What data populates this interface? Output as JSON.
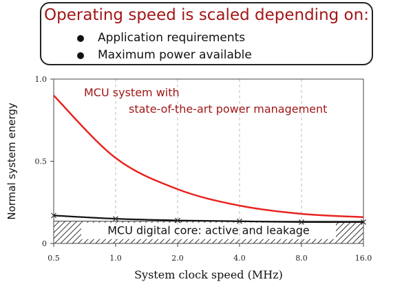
{
  "callout": {
    "title": "Operating speed is scaled depending on:",
    "bullets": [
      "Application requirements",
      "Maximum power available"
    ]
  },
  "chart_data": {
    "type": "line",
    "title": "",
    "xlabel": "System clock speed (MHz)",
    "ylabel": "Normal system energy",
    "x_scale": "log2",
    "x": [
      0.5,
      1.0,
      2.0,
      4.0,
      8.0,
      16.0
    ],
    "x_tick_labels": [
      "0.5",
      "1.0",
      "2.0",
      "4.0",
      "8.0",
      "16.0"
    ],
    "y_tick_labels": [
      "0",
      "0.5",
      "1.0"
    ],
    "xlim": [
      0.5,
      16.0
    ],
    "ylim": [
      0,
      1.0
    ],
    "grid": "vertical dashed",
    "series": [
      {
        "name": "MCU system with state-of-the-art power management",
        "label_lines": [
          "MCU system with",
          "state-of-the-art power management"
        ],
        "color": "#e8231e",
        "values": [
          0.9,
          0.52,
          0.33,
          0.23,
          0.18,
          0.16
        ]
      },
      {
        "name": "MCU digital core: active and leakage",
        "color": "#111111",
        "marker": "x",
        "values": [
          0.17,
          0.15,
          0.14,
          0.135,
          0.13,
          0.13
        ]
      }
    ],
    "core_band": {
      "label": "MCU digital core: active and leakage",
      "ymin": 0,
      "ymax": 0.135
    }
  }
}
